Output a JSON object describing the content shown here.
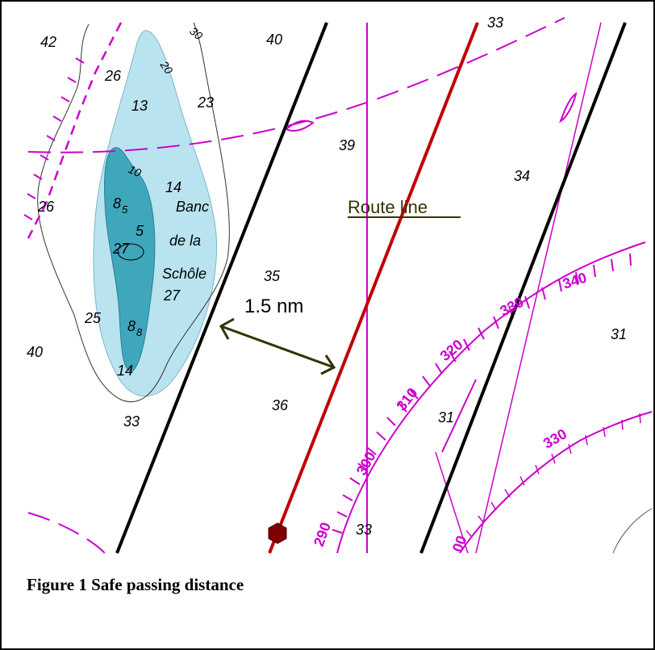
{
  "caption": "Figure 1 Safe passing distance",
  "labels": {
    "route_line": "Route line",
    "distance": "1.5 nm",
    "bank_line1": "Banc",
    "bank_line2": "de la",
    "bank_line3": "Schôle"
  },
  "soundings": {
    "s42": "42",
    "s26a": "26",
    "s13": "13",
    "s23": "23",
    "s40a": "40",
    "s39": "39",
    "s34": "34",
    "s14a": "14",
    "s26b": "26",
    "s35": "35",
    "s25": "25",
    "s40b": "40",
    "s27": "27",
    "s14b": "14",
    "s33a": "33",
    "s36": "36",
    "s31a": "31",
    "s31b": "31",
    "s33b": "33",
    "s33top": "33",
    "s85": "8",
    "s85sub": "5",
    "s88": "8",
    "s88sub": "8",
    "s27b": "27",
    "sS": "5"
  },
  "contours": {
    "c30": "30",
    "c20": "20",
    "c10": "10"
  },
  "compass": {
    "outer": [
      "290",
      "300",
      "310",
      "320",
      "330",
      "340"
    ],
    "inner": "330",
    "partial": "00"
  },
  "colors": {
    "shallow_light": "#b9e3ef",
    "shallow_dark": "#3fa7bb",
    "magenta": "#cc00cc",
    "route": "#c00000",
    "limit": "#000000",
    "arrow": "#333300"
  }
}
